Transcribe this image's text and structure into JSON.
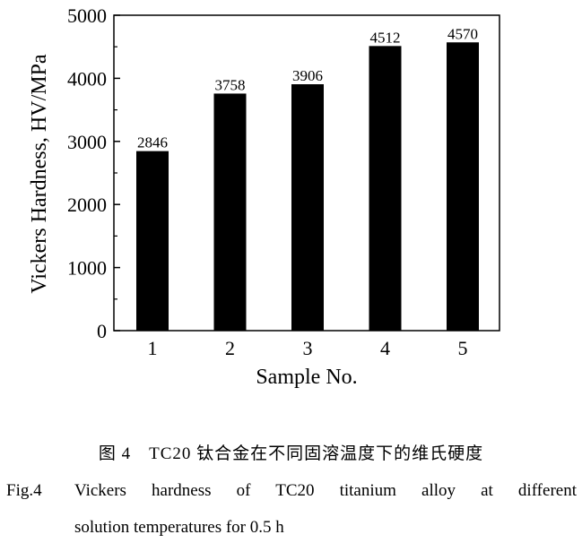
{
  "chart_data": {
    "type": "bar",
    "categories": [
      "1",
      "2",
      "3",
      "4",
      "5"
    ],
    "values": [
      2846,
      3758,
      3906,
      4512,
      4570
    ],
    "data_labels": [
      "2846",
      "3758",
      "3906",
      "4512",
      "4570"
    ],
    "xlabel": "Sample No.",
    "ylabel": "Vickers Hardness,  HV/MPa",
    "ylim": [
      0,
      5000
    ],
    "yticks": [
      "0",
      "1000",
      "2000",
      "3000",
      "4000",
      "5000"
    ],
    "bar_color": "#000000",
    "grid": false,
    "legend": "none"
  },
  "caption": {
    "chinese": "图 4　TC20 钛合金在不同固溶温度下的维氏硬度",
    "fig_label": "Fig.4",
    "english_line1": "Vickers hardness of TC20 titanium alloy at different",
    "english_line2": "solution temperatures for 0.5 h"
  }
}
